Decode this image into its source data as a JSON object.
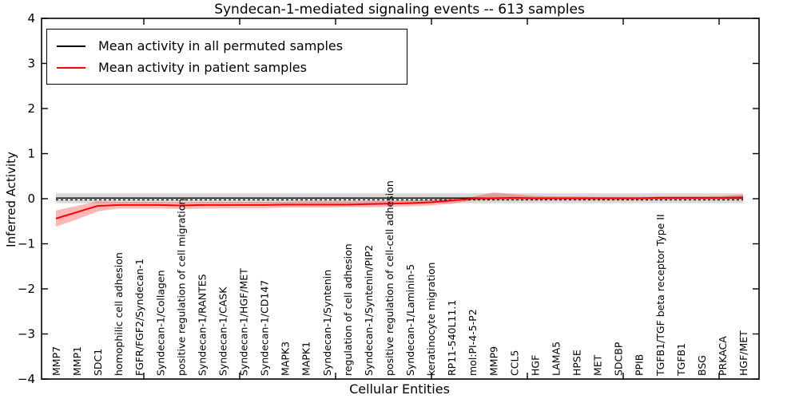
{
  "chart_data": {
    "type": "line",
    "title": "Syndecan-1-mediated signaling events -- 613 samples",
    "xlabel": "Cellular Entities",
    "ylabel": "Inferred Activity",
    "ylim": [
      -4,
      4
    ],
    "y_tick_labels": [
      "4",
      "3",
      "2",
      "1",
      "0",
      "−1",
      "−2",
      "−3",
      "−4"
    ],
    "y_tick_values": [
      4,
      3,
      2,
      1,
      0,
      -1,
      -2,
      -3,
      -4
    ],
    "grid": false,
    "legend_position": "upper left",
    "zero_line": {
      "style": "dashed",
      "color": "#000000",
      "y": -0.025
    },
    "categories": [
      "MMP7",
      "MMP1",
      "SDC1",
      "homophilic cell adhesion",
      "FGFR/FGF2/Syndecan-1",
      "Syndecan-1/Collagen",
      "positive regulation of cell migration",
      "Syndecan-1/RANTES",
      "Syndecan-1/CASK",
      "Syndecan-1/HGF/MET",
      "Syndecan-1/CD147",
      "MAPK3",
      "MAPK1",
      "Syndecan-1/Syntenin",
      "regulation of cell adhesion",
      "Syndecan-1/Syntenin/PIP2",
      "positive regulation of cell-cell adhesion",
      "Syndecan-1/Laminin-5",
      "keratinocyte migration",
      "RP11-540L11.1",
      "mol:PI-4-5-P2",
      "MMP9",
      "CCL5",
      "HGF",
      "LAMA5",
      "HPSE",
      "MET",
      "SDCBP",
      "PPIB",
      "TGFB1/TGF beta receptor Type II",
      "TGFB1",
      "BSG",
      "PRKACA",
      "HGF/MET"
    ],
    "series": [
      {
        "name": "Mean activity in all permuted samples",
        "color": "#000000",
        "band_color": "rgba(0,0,0,0.15)",
        "values": [
          0.015,
          0.015,
          0.015,
          0.015,
          0.015,
          0.015,
          0.015,
          0.015,
          0.015,
          0.015,
          0.015,
          0.015,
          0.015,
          0.015,
          0.015,
          0.015,
          0.015,
          0.015,
          0.015,
          0.015,
          0.015,
          0.015,
          0.015,
          0.015,
          0.015,
          0.015,
          0.015,
          0.015,
          0.015,
          0.015,
          0.015,
          0.015,
          0.015,
          0.015
        ],
        "band_upper": [
          0.12,
          0.12,
          0.12,
          0.12,
          0.12,
          0.12,
          0.12,
          0.12,
          0.12,
          0.12,
          0.12,
          0.12,
          0.12,
          0.12,
          0.12,
          0.12,
          0.12,
          0.12,
          0.12,
          0.12,
          0.12,
          0.12,
          0.12,
          0.12,
          0.12,
          0.12,
          0.12,
          0.12,
          0.12,
          0.12,
          0.12,
          0.12,
          0.12,
          0.12
        ],
        "band_lower": [
          -0.1,
          -0.1,
          -0.1,
          -0.1,
          -0.1,
          -0.1,
          -0.1,
          -0.1,
          -0.1,
          -0.1,
          -0.1,
          -0.1,
          -0.1,
          -0.1,
          -0.1,
          -0.1,
          -0.1,
          -0.1,
          -0.1,
          -0.1,
          -0.1,
          -0.1,
          -0.1,
          -0.1,
          -0.1,
          -0.1,
          -0.1,
          -0.1,
          -0.1,
          -0.1,
          -0.1,
          -0.1,
          -0.1,
          -0.1
        ]
      },
      {
        "name": "Mean activity in patient samples",
        "color": "#ff0000",
        "band_color": "rgba(255,0,0,0.28)",
        "values": [
          -0.44,
          -0.3,
          -0.16,
          -0.14,
          -0.14,
          -0.14,
          -0.15,
          -0.14,
          -0.14,
          -0.14,
          -0.14,
          -0.13,
          -0.13,
          -0.13,
          -0.13,
          -0.12,
          -0.11,
          -0.1,
          -0.08,
          -0.04,
          0.0,
          0.01,
          0.02,
          0.01,
          0.01,
          0.01,
          0.01,
          0.01,
          0.01,
          0.02,
          0.02,
          0.02,
          0.02,
          0.03
        ],
        "band_upper": [
          -0.26,
          -0.16,
          -0.06,
          -0.07,
          -0.07,
          -0.07,
          -0.08,
          -0.07,
          -0.07,
          -0.07,
          -0.07,
          -0.07,
          -0.06,
          -0.06,
          -0.06,
          -0.06,
          -0.05,
          -0.04,
          -0.02,
          0.02,
          0.04,
          0.14,
          0.1,
          0.06,
          0.05,
          0.05,
          0.04,
          0.04,
          0.04,
          0.05,
          0.05,
          0.05,
          0.06,
          0.09
        ],
        "band_lower": [
          -0.62,
          -0.46,
          -0.28,
          -0.22,
          -0.22,
          -0.22,
          -0.23,
          -0.22,
          -0.22,
          -0.21,
          -0.21,
          -0.2,
          -0.2,
          -0.2,
          -0.19,
          -0.19,
          -0.18,
          -0.17,
          -0.15,
          -0.11,
          -0.04,
          -0.03,
          -0.03,
          -0.03,
          -0.03,
          -0.03,
          -0.03,
          -0.03,
          -0.03,
          -0.02,
          -0.02,
          -0.02,
          -0.02,
          -0.02
        ]
      }
    ]
  },
  "legend": {
    "items": [
      {
        "label": "Mean activity in all permuted samples",
        "color": "#000000"
      },
      {
        "label": "Mean activity in patient samples",
        "color": "#ff0000"
      }
    ]
  }
}
